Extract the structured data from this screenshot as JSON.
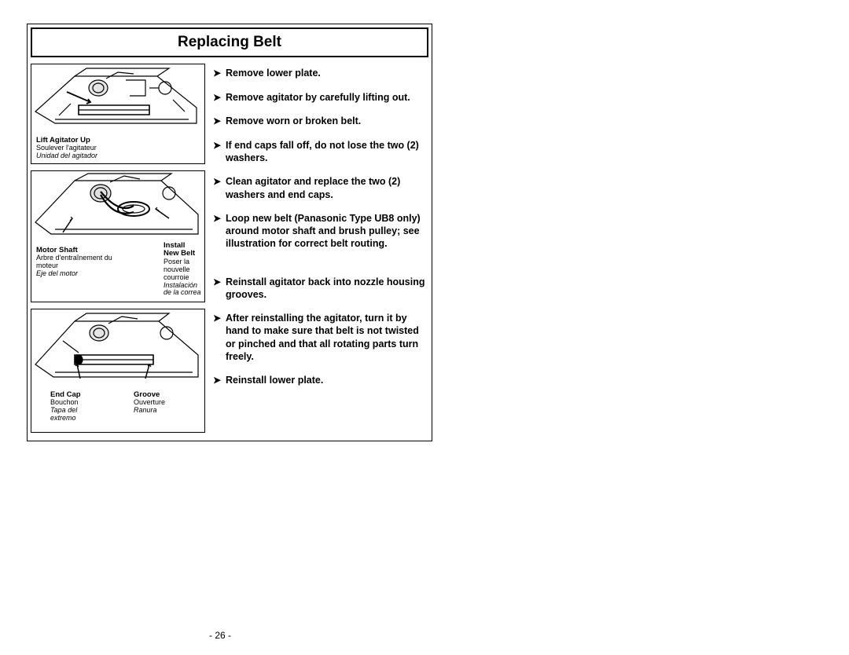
{
  "title": "Replacing Belt",
  "pageNumber": "- 26 -",
  "illustrations": [
    {
      "labels": [
        {
          "bold": "Lift Agitator Up",
          "fr": "Soulever l'agitateur",
          "es": "Unidad del agitador"
        }
      ]
    },
    {
      "labels": [
        {
          "bold": "Motor Shaft",
          "fr": "Arbre d'entraînement du moteur",
          "es": "Eje del motor"
        },
        {
          "bold": "Install New Belt",
          "fr": "Poser la nouvelle courroie",
          "es": "Instalación de la correa"
        }
      ]
    },
    {
      "labels": [
        {
          "bold": "End Cap",
          "fr": "Bouchon",
          "es": "Tapa del extremo"
        },
        {
          "bold": "Groove",
          "fr": "Ouverture",
          "es": "Ranura"
        }
      ]
    }
  ],
  "stepsGroup1": [
    "Remove lower plate.",
    "Remove agitator by carefully lifting out.",
    "Remove worn or broken belt.",
    "If end caps fall off, do not lose the two (2) washers.",
    "Clean agitator and replace the two (2) washers and end caps.",
    "Loop new belt (Panasonic Type UB8 only) around motor shaft and brush pulley; see illustration for correct belt routing."
  ],
  "stepsGroup2": [
    "Reinstall agitator back into nozzle housing grooves.",
    "After reinstalling the agitator, turn it by hand to make sure that belt is not twisted or pinched and that all rotating parts turn freely.",
    "Reinstall lower plate."
  ],
  "colors": {
    "border": "#000000",
    "text": "#000000",
    "bg": "#ffffff"
  }
}
